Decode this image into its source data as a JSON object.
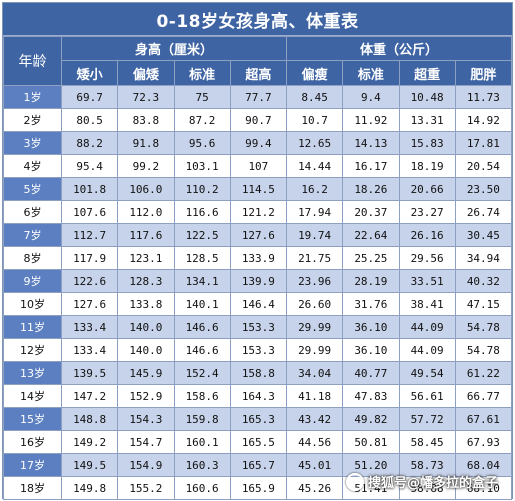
{
  "title": "0-18岁女孩身高、体重表",
  "header": {
    "age_label": "年龄",
    "height_group": "身高（厘米）",
    "weight_group": "体重（公斤）",
    "height_cols": [
      "矮小",
      "偏矮",
      "标准",
      "超高"
    ],
    "weight_cols": [
      "偏瘦",
      "标准",
      "超重",
      "肥胖"
    ]
  },
  "rows": [
    {
      "age": "1岁",
      "values": [
        "69.7",
        "72.3",
        "75",
        "77.7",
        "8.45",
        "9.4",
        "10.48",
        "11.73"
      ]
    },
    {
      "age": "2岁",
      "values": [
        "80.5",
        "83.8",
        "87.2",
        "90.7",
        "10.7",
        "11.92",
        "13.31",
        "14.92"
      ]
    },
    {
      "age": "3岁",
      "values": [
        "88.2",
        "91.8",
        "95.6",
        "99.4",
        "12.65",
        "14.13",
        "15.83",
        "17.81"
      ]
    },
    {
      "age": "4岁",
      "values": [
        "95.4",
        "99.2",
        "103.1",
        "107",
        "14.44",
        "16.17",
        "18.19",
        "20.54"
      ]
    },
    {
      "age": "5岁",
      "values": [
        "101.8",
        "106.0",
        "110.2",
        "114.5",
        "16.2",
        "18.26",
        "20.66",
        "23.50"
      ]
    },
    {
      "age": "6岁",
      "values": [
        "107.6",
        "112.0",
        "116.6",
        "121.2",
        "17.94",
        "20.37",
        "23.27",
        "26.74"
      ]
    },
    {
      "age": "7岁",
      "values": [
        "112.7",
        "117.6",
        "122.5",
        "127.6",
        "19.74",
        "22.64",
        "26.16",
        "30.45"
      ]
    },
    {
      "age": "8岁",
      "values": [
        "117.9",
        "123.1",
        "128.5",
        "133.9",
        "21.75",
        "25.25",
        "29.56",
        "34.94"
      ]
    },
    {
      "age": "9岁",
      "values": [
        "122.6",
        "128.3",
        "134.1",
        "139.9",
        "23.96",
        "28.19",
        "33.51",
        "40.32"
      ]
    },
    {
      "age": "10岁",
      "values": [
        "127.6",
        "133.8",
        "140.1",
        "146.4",
        "26.60",
        "31.76",
        "38.41",
        "47.15"
      ]
    },
    {
      "age": "11岁",
      "values": [
        "133.4",
        "140.0",
        "146.6",
        "153.3",
        "29.99",
        "36.10",
        "44.09",
        "54.78"
      ]
    },
    {
      "age": "12岁",
      "values": [
        "133.4",
        "140.0",
        "146.6",
        "153.3",
        "29.99",
        "36.10",
        "44.09",
        "54.78"
      ]
    },
    {
      "age": "13岁",
      "values": [
        "139.5",
        "145.9",
        "152.4",
        "158.8",
        "34.04",
        "40.77",
        "49.54",
        "61.22"
      ]
    },
    {
      "age": "14岁",
      "values": [
        "147.2",
        "152.9",
        "158.6",
        "164.3",
        "41.18",
        "47.83",
        "56.61",
        "66.77"
      ]
    },
    {
      "age": "15岁",
      "values": [
        "148.8",
        "154.3",
        "159.8",
        "165.3",
        "43.42",
        "49.82",
        "57.72",
        "67.61"
      ]
    },
    {
      "age": "16岁",
      "values": [
        "149.2",
        "154.7",
        "160.1",
        "165.5",
        "44.56",
        "50.81",
        "58.45",
        "67.93"
      ]
    },
    {
      "age": "17岁",
      "values": [
        "149.5",
        "154.9",
        "160.3",
        "165.7",
        "45.01",
        "51.20",
        "58.73",
        "68.04"
      ]
    },
    {
      "age": "18岁",
      "values": [
        "149.8",
        "155.2",
        "160.6",
        "165.9",
        "45.26",
        "51.41",
        "58.88",
        "68.10"
      ]
    }
  ],
  "watermark": "搜狐号@幡多拉的盒子",
  "colors": {
    "header_blue": "#3f64a3",
    "age_blue": "#5b7fc0",
    "row_stripe": "#c7d3ea"
  }
}
